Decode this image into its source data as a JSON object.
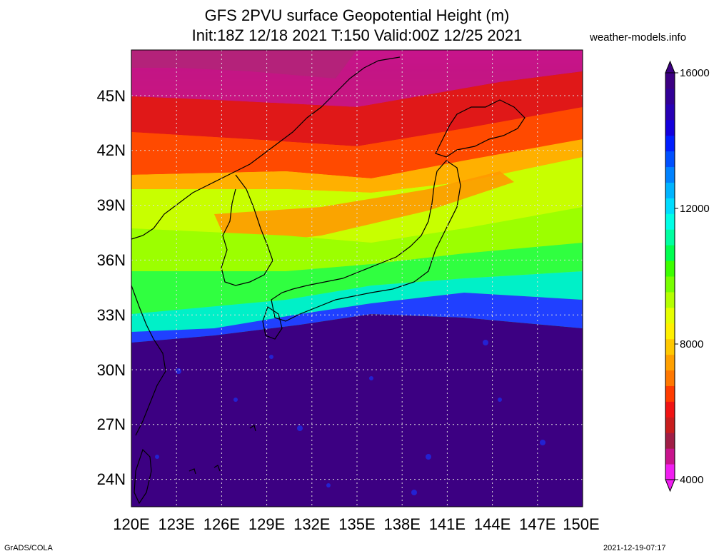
{
  "header": {
    "title_line1": "GFS 2PVU surface Geopotential Height (m)",
    "title_line2": "Init:18Z 12/18 2021 T:150 Valid:00Z 12/25 2021",
    "source": "weather-models.info"
  },
  "map": {
    "lon_range": [
      120,
      150
    ],
    "lat_range": [
      22.5,
      47.5
    ],
    "lon_ticks": [
      "120E",
      "123E",
      "126E",
      "129E",
      "132E",
      "135E",
      "138E",
      "141E",
      "144E",
      "147E",
      "150E"
    ],
    "lat_ticks": [
      "24N",
      "27N",
      "30N",
      "33N",
      "36N",
      "39N",
      "42N",
      "45N"
    ],
    "grid": "dotted"
  },
  "colorbar": {
    "min": 4000,
    "max": 16000,
    "labels": [
      "4000",
      "8000",
      "12000",
      "16000"
    ],
    "colors": [
      "#f01ef0",
      "#c8148c",
      "#a01e46",
      "#c81e1e",
      "#f01414",
      "#ff3c00",
      "#ff7800",
      "#ffa000",
      "#ffc800",
      "#fff000",
      "#e6ff00",
      "#b4ff00",
      "#78ff00",
      "#3cff00",
      "#00ff50",
      "#00ffa0",
      "#00ffe6",
      "#00dcff",
      "#00b4ff",
      "#0082ff",
      "#0050ff",
      "#001eff",
      "#1400dc",
      "#2800b4",
      "#320096",
      "#3c0082"
    ]
  },
  "footer": {
    "left": "GrADS/COLA",
    "right": "2021-12-19-07:17"
  }
}
